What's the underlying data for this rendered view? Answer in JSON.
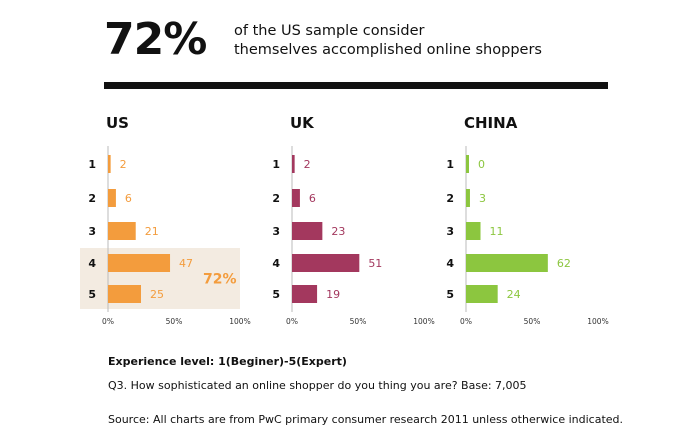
{
  "header": {
    "big_percent": "72%",
    "headline_line1": "of the US sample consider",
    "headline_line2": "themselves accomplished online shoppers"
  },
  "colors": {
    "us": "#f39c3d",
    "uk": "#a3385e",
    "china": "#8cc63f",
    "highlight_bg": "#f3ebe1",
    "highlight_text": "#f39c3d"
  },
  "chart_data": [
    {
      "type": "bar",
      "title": "US",
      "categories": [
        "1",
        "2",
        "3",
        "4",
        "5"
      ],
      "values": [
        2,
        6,
        21,
        47,
        25
      ],
      "xlim": [
        0,
        100
      ],
      "xticks": [
        "0%",
        "50%",
        "100%"
      ],
      "highlight": {
        "categories": [
          "4",
          "5"
        ],
        "label": "72%"
      }
    },
    {
      "type": "bar",
      "title": "UK",
      "categories": [
        "1",
        "2",
        "3",
        "4",
        "5"
      ],
      "values": [
        2,
        6,
        23,
        51,
        19
      ],
      "xlim": [
        0,
        100
      ],
      "xticks": [
        "0%",
        "50%",
        "100%"
      ]
    },
    {
      "type": "bar",
      "title": "CHINA",
      "categories": [
        "1",
        "2",
        "3",
        "4",
        "5"
      ],
      "values": [
        0,
        3,
        11,
        62,
        24
      ],
      "xlim": [
        0,
        100
      ],
      "xticks": [
        "0%",
        "50%",
        "100%"
      ]
    }
  ],
  "footer": {
    "experience_label": "Experience level: 1(Beginer)-5(Expert)",
    "question": "Q3. How sophisticated an online shopper do you thing you are? Base: 7,005",
    "source": "Source: All charts are from PwC primary consumer research 2011 unless otherwice indicated."
  }
}
